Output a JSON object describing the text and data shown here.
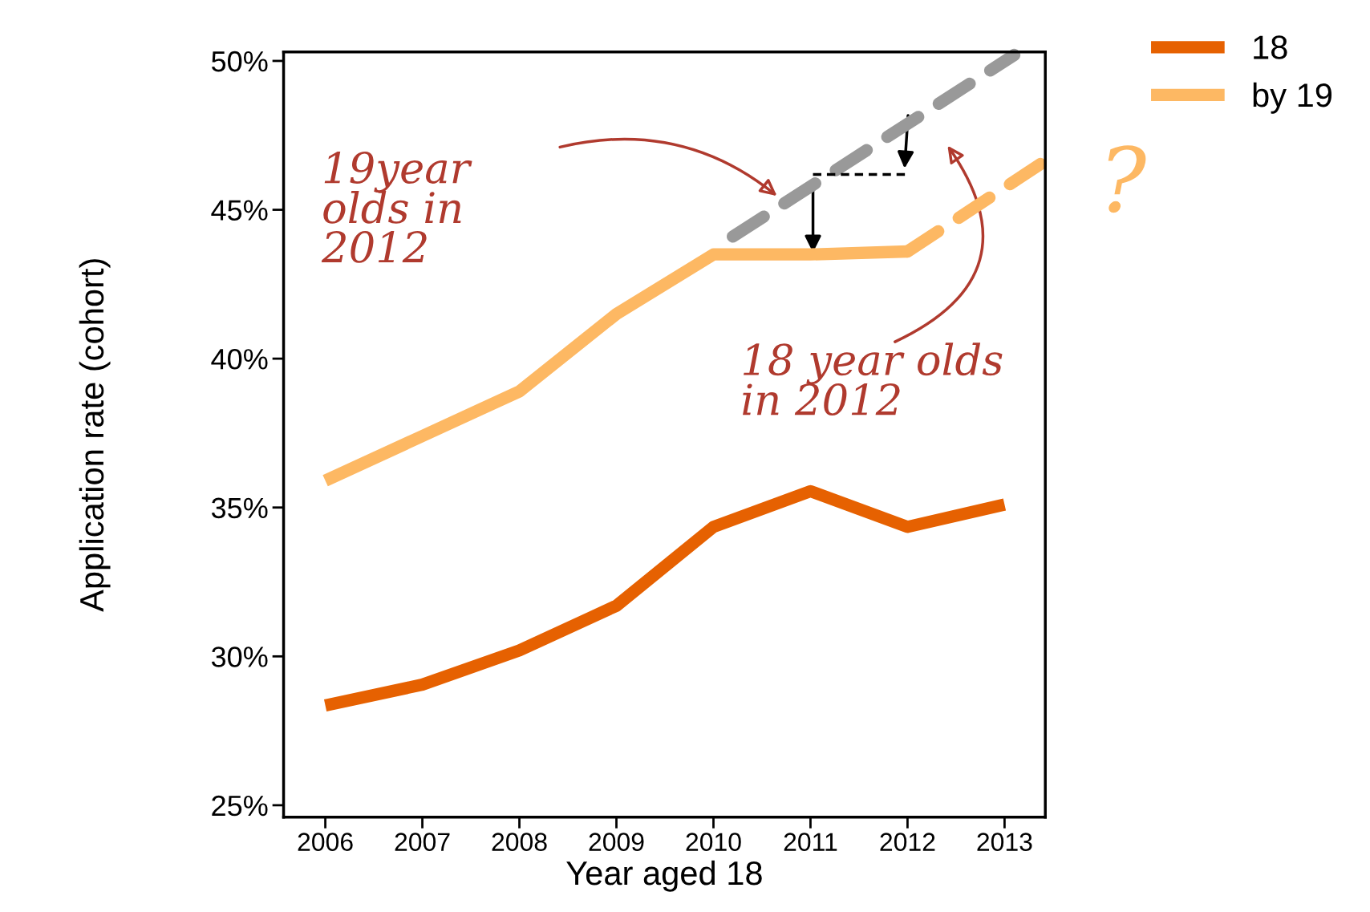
{
  "chart_data": {
    "type": "line",
    "xlabel": "Year aged 18",
    "ylabel": "Application rate (cohort)",
    "x": [
      2006,
      2007,
      2008,
      2009,
      2010,
      2011,
      2012,
      2013
    ],
    "series": [
      {
        "name": "18",
        "color": "#e66101",
        "values": [
          28.35,
          29.05,
          30.2,
          31.7,
          34.35,
          35.55,
          34.35,
          35.1
        ]
      },
      {
        "name": "by 19",
        "color": "#fdb863",
        "values": [
          35.9,
          37.4,
          38.9,
          41.5,
          43.5,
          43.5,
          43.6,
          null
        ]
      },
      {
        "color": "#fdb863",
        "x": [
          2012,
          2013.4
        ],
        "values": [
          43.6,
          46.6
        ],
        "line_style": "dashed"
      },
      {
        "color": "#999999",
        "x": [
          2010.2,
          2013.1
        ],
        "values": [
          44.1,
          50.2
        ],
        "line_style": "dashed"
      }
    ],
    "xlim": [
      2005.57,
      2013.42
    ],
    "ylim": [
      24.6,
      50.3
    ],
    "xticks": [
      2006,
      2007,
      2008,
      2009,
      2010,
      2011,
      2012,
      2013
    ],
    "yticks": [
      {
        "value": 25,
        "label": "25%"
      },
      {
        "value": 30,
        "label": "30%"
      },
      {
        "value": 35,
        "label": "35%"
      },
      {
        "value": 40,
        "label": "40%"
      },
      {
        "value": 45,
        "label": "45%"
      },
      {
        "value": 50,
        "label": "50%"
      }
    ],
    "annotations": [
      "19year\nolds in\n2012",
      "18 year olds\nin 2012",
      "?"
    ],
    "legend": "top right",
    "grid": false,
    "line_style": "solid",
    "marker": "none"
  }
}
